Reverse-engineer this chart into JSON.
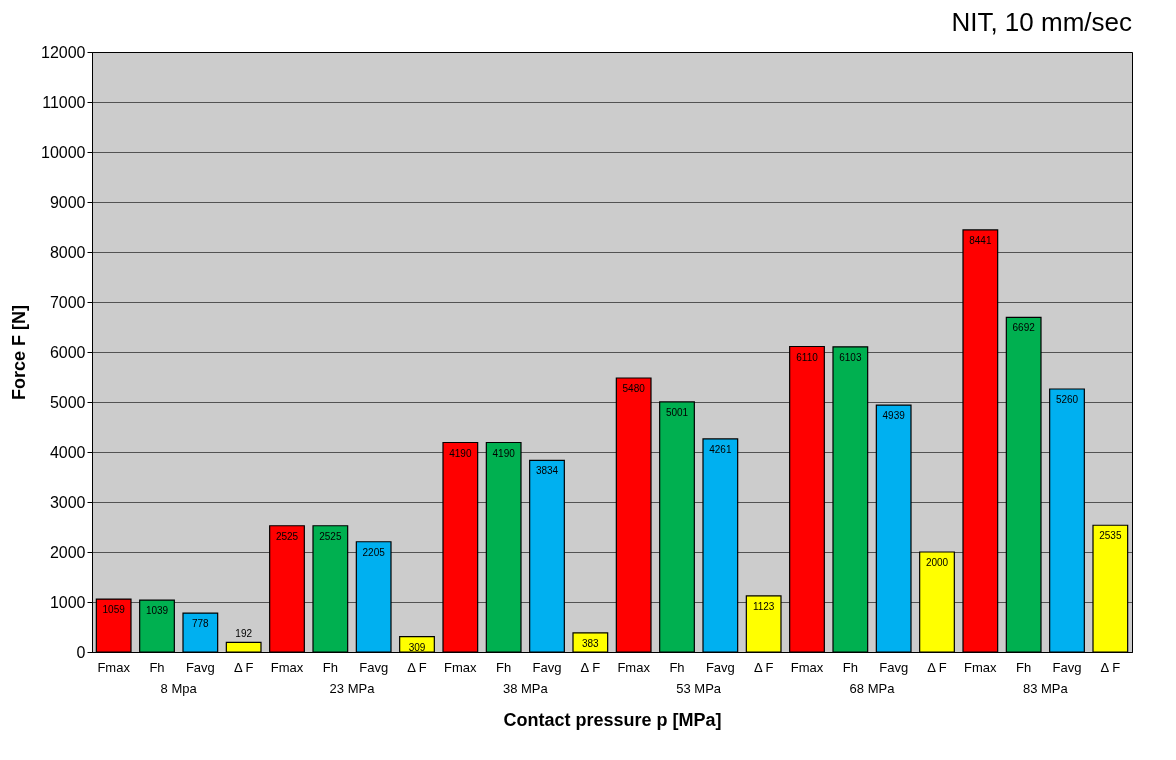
{
  "chart_data": {
    "type": "bar",
    "title": "NIT, 10 mm/sec",
    "xlabel": "Contact pressure p [MPa]",
    "ylabel": "Force F [N]",
    "categories": [
      "8 Mpa",
      "23 MPa",
      "38 MPa",
      "53 MPa",
      "68 MPa",
      "83 MPa"
    ],
    "series": [
      {
        "name": "Fmax",
        "color": "#ff0000",
        "values": [
          1059,
          2525,
          4190,
          5480,
          6110,
          8441
        ]
      },
      {
        "name": "Fh",
        "color": "#00b050",
        "values": [
          1039,
          2525,
          4190,
          5001,
          6103,
          6692
        ]
      },
      {
        "name": "Favg",
        "color": "#00b0f0",
        "values": [
          778,
          2205,
          3834,
          4261,
          4939,
          5260
        ]
      },
      {
        "name": "Δ F",
        "color": "#ffff00",
        "values": [
          192,
          309,
          383,
          1123,
          2000,
          2535
        ]
      }
    ],
    "ylim": [
      0,
      12000
    ],
    "yticks": [
      0,
      1000,
      2000,
      3000,
      4000,
      5000,
      6000,
      7000,
      8000,
      9000,
      10000,
      11000,
      12000
    ],
    "grid": "y",
    "legend": false,
    "data_labels": true
  }
}
